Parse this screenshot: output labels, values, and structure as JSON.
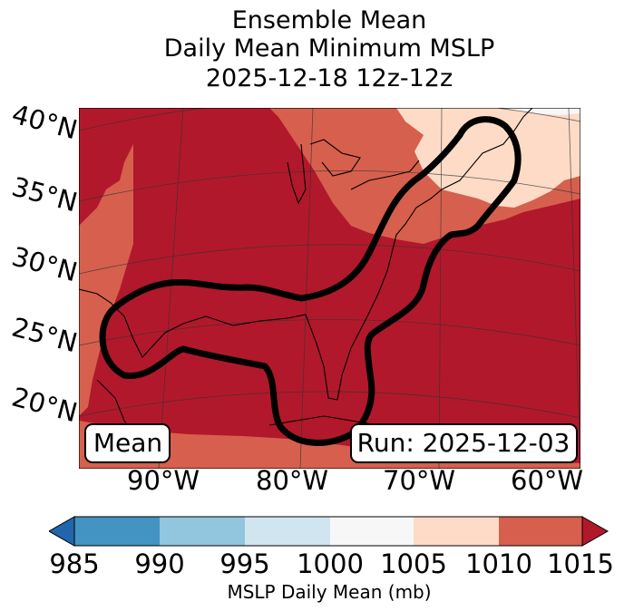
{
  "title": {
    "line1": "Ensemble Mean",
    "line2": "Daily Mean Minimum MSLP",
    "line3": "2025-12-18 12z-12z"
  },
  "map": {
    "lat_labels": [
      "40°N",
      "35°N",
      "30°N",
      "25°N",
      "20°N"
    ],
    "lon_labels": [
      "90°W",
      "80°W",
      "70°W",
      "60°W"
    ],
    "mean_label": "Mean",
    "run_label": "Run: 2025-12-03",
    "fill_colors": {
      "dark_red": "#b2182b",
      "red": "#d6604d",
      "peach": "#fddbc7",
      "white": "#f7f7f7"
    },
    "contour_color": "#000000"
  },
  "colorbar": {
    "label": "MSLP Daily Mean (mb)",
    "ticks": [
      "985",
      "990",
      "995",
      "1000",
      "1005",
      "1010",
      "1015"
    ],
    "colors": [
      "#2166ac",
      "#4393c3",
      "#92c5de",
      "#d1e5f0",
      "#f7f7f7",
      "#fddbc7",
      "#d6604d",
      "#b2182b"
    ]
  }
}
